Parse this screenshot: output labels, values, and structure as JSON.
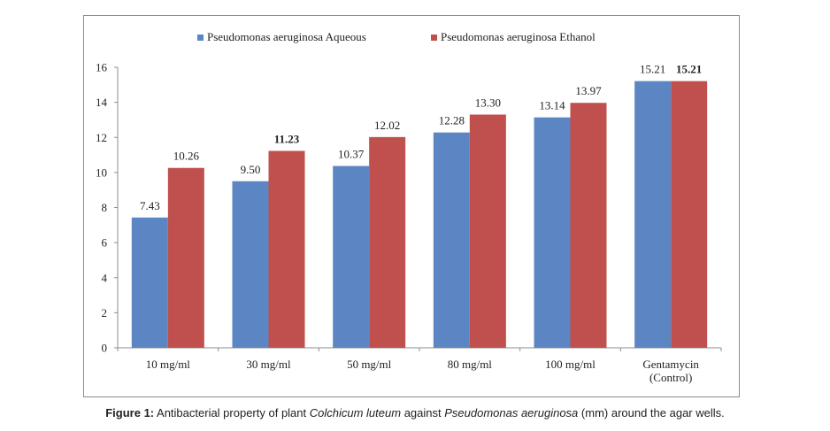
{
  "chart_data": {
    "type": "bar",
    "categories": [
      "10 mg/ml",
      "30 mg/ml",
      "50 mg/ml",
      "80 mg/ml",
      "100 mg/ml",
      [
        "Gentamycin",
        "(Control)"
      ]
    ],
    "series": [
      {
        "name": "Pseudomonas aeruginosa Aqueous",
        "color": "#5b86c3",
        "values": [
          7.43,
          9.5,
          10.37,
          12.28,
          13.14,
          15.21
        ],
        "labels": [
          "7.43",
          "9.50",
          "10.37",
          "12.28",
          "13.14",
          "15.21"
        ],
        "bold": [
          false,
          false,
          false,
          false,
          false,
          false
        ]
      },
      {
        "name": "Pseudomonas aeruginosa Ethanol",
        "color": "#c0504d",
        "values": [
          10.26,
          11.23,
          12.02,
          13.3,
          13.97,
          15.21
        ],
        "labels": [
          "10.26",
          "11.23",
          "12.02",
          "13.30",
          "13.97",
          "15.21"
        ],
        "bold": [
          false,
          true,
          false,
          false,
          false,
          true
        ]
      }
    ],
    "ylim": [
      0,
      16
    ],
    "yticks": [
      "0",
      "2",
      "4",
      "6",
      "8",
      "10",
      "12",
      "14",
      "16"
    ],
    "grid": false,
    "legend_position": "top"
  },
  "caption": {
    "figure_label": "Figure 1:",
    "text_1": " Antibacterial property of plant ",
    "italic_1": "Colchicum luteum",
    "text_2": " against ",
    "italic_2": "Pseudomonas aeruginosa",
    "text_3": " (mm) around the agar wells."
  }
}
